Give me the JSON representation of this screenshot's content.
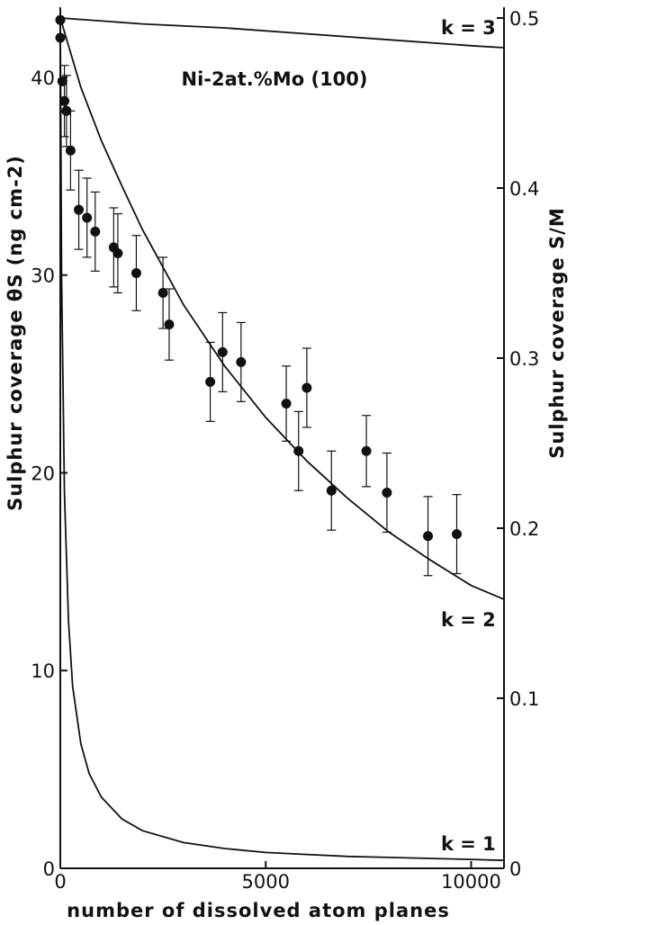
{
  "chart_data": {
    "type": "scatter",
    "title": "Ni-2at.%Mo (100)",
    "xlabel": "number of dissolved atom planes",
    "ylabel_left": "Sulphur coverage θS (ng cm-2)",
    "ylabel_right": "Sulphur coverage S/M",
    "xlim": [
      0,
      10800
    ],
    "ylim_left": [
      0,
      43
    ],
    "ylim_right": [
      0,
      0.5
    ],
    "x_ticks": [
      "0",
      "5000",
      "10000"
    ],
    "y_ticks_left": [
      "0",
      "10",
      "20",
      "30",
      "40"
    ],
    "y_ticks_right": [
      "0",
      "0.1",
      "0.2",
      "0.3",
      "0.4",
      "0.5"
    ],
    "grid": false,
    "measured": {
      "x": [
        0,
        0,
        50,
        100,
        150,
        250,
        450,
        650,
        850,
        1300,
        1400,
        1850,
        2500,
        2650,
        3650,
        3950,
        4400,
        5500,
        5800,
        6000,
        6600,
        7450,
        7950,
        8950,
        9650
      ],
      "y": [
        42.9,
        42.0,
        39.8,
        38.8,
        38.3,
        36.3,
        33.3,
        32.9,
        32.2,
        31.4,
        31.1,
        30.1,
        29.1,
        27.5,
        24.6,
        26.1,
        25.6,
        23.5,
        21.1,
        24.3,
        19.1,
        21.1,
        19.0,
        16.8,
        16.9
      ],
      "y_error": [
        0,
        0,
        0,
        1.8,
        1.8,
        2.0,
        2.0,
        2.0,
        2.0,
        2.0,
        2.0,
        1.9,
        1.8,
        1.8,
        2.0,
        2.0,
        2.0,
        1.9,
        2.0,
        2.0,
        2.0,
        1.8,
        2.0,
        2.0,
        2.0
      ]
    },
    "curves": [
      {
        "label": "k = 3",
        "x": [
          0,
          2000,
          4000,
          6000,
          8000,
          10000,
          10800
        ],
        "y": [
          43.0,
          42.7,
          42.5,
          42.2,
          41.9,
          41.6,
          41.5
        ]
      },
      {
        "label": "k = 2",
        "x": [
          0,
          500,
          1000,
          1500,
          2000,
          3000,
          4000,
          5000,
          6000,
          7000,
          8000,
          9000,
          10000,
          10800
        ],
        "y": [
          43.0,
          39.5,
          36.8,
          34.5,
          32.3,
          28.5,
          25.4,
          22.8,
          20.6,
          18.7,
          17.0,
          15.6,
          14.3,
          13.6
        ]
      },
      {
        "label": "k = 1",
        "x": [
          0,
          30,
          100,
          200,
          300,
          500,
          700,
          1000,
          1500,
          2000,
          3000,
          4000,
          5000,
          6000,
          7000,
          8000,
          9000,
          10000,
          10800
        ],
        "y": [
          43.0,
          30.0,
          19.0,
          12.5,
          9.2,
          6.3,
          4.8,
          3.6,
          2.5,
          1.9,
          1.3,
          1.0,
          0.8,
          0.7,
          0.6,
          0.55,
          0.5,
          0.45,
          0.4
        ]
      }
    ]
  }
}
